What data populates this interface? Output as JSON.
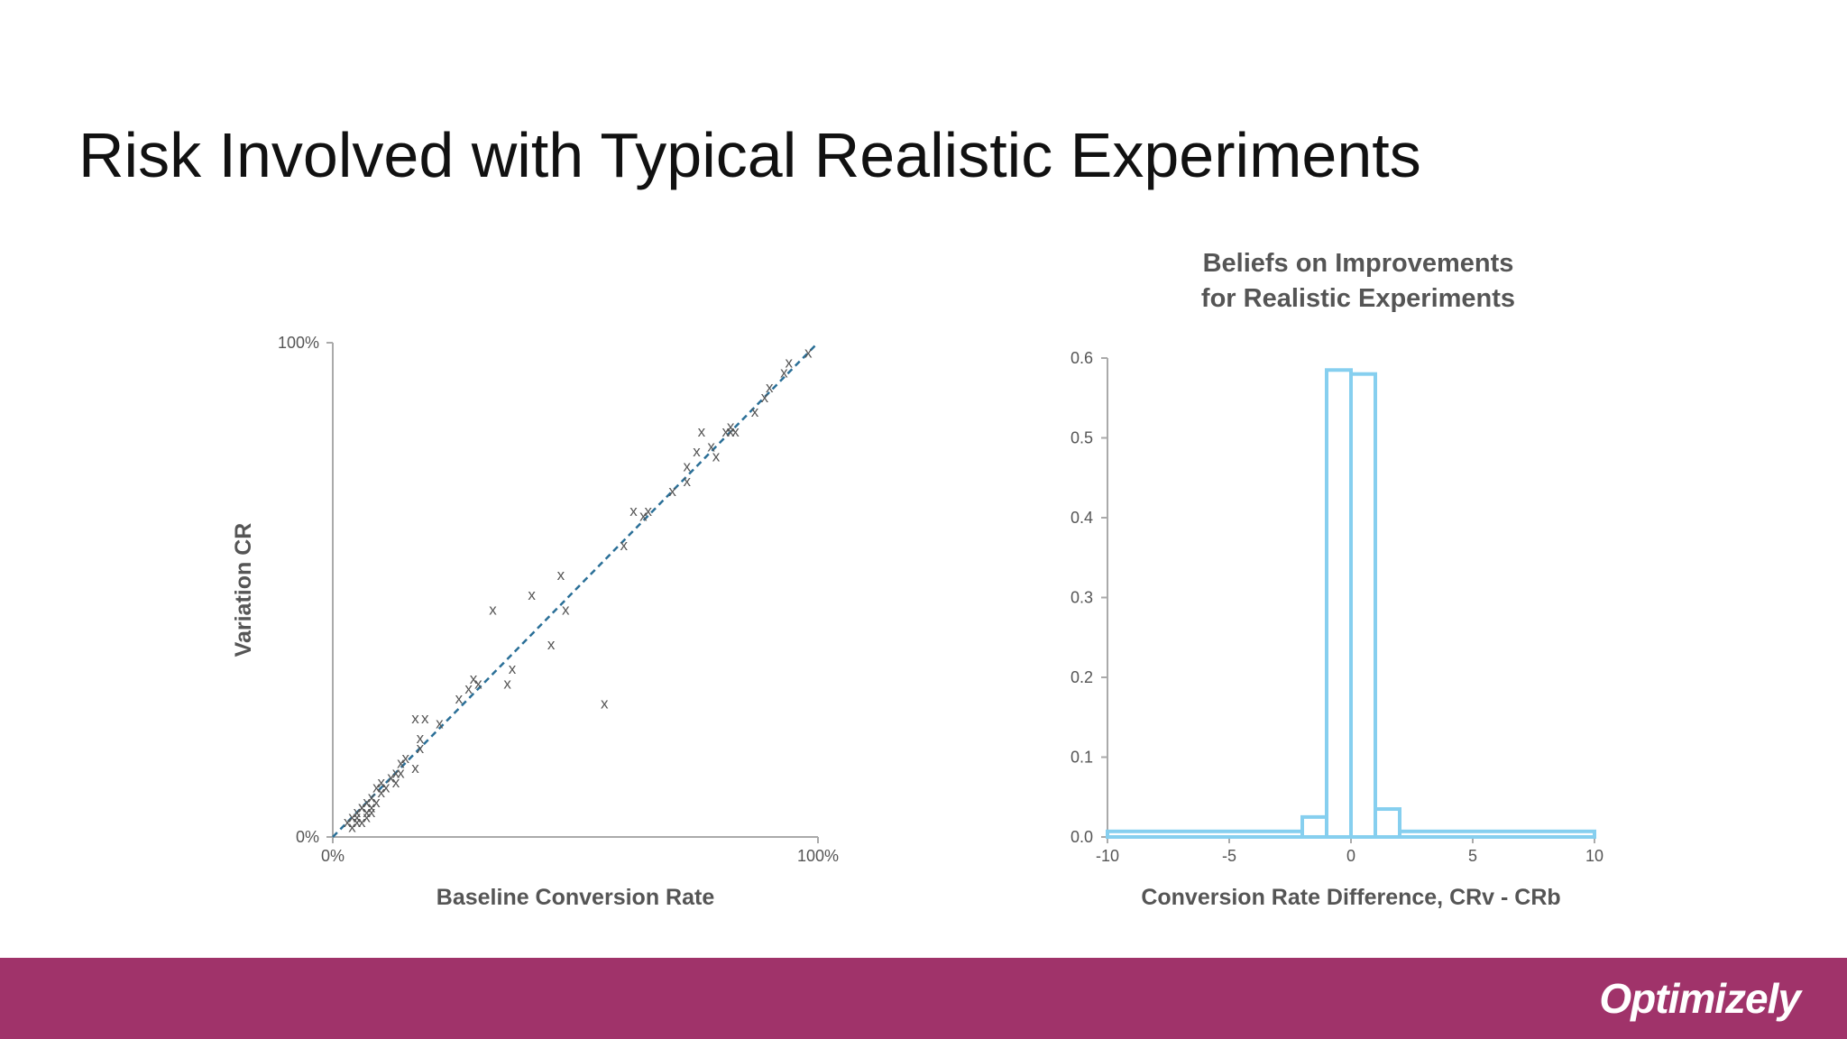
{
  "slide": {
    "title": "Risk Involved with Typical Realistic Experiments",
    "logo_text": "Optimizely",
    "footer_color": "#a0336a"
  },
  "chart_data": [
    {
      "type": "scatter",
      "title": "",
      "xlabel": "Baseline Conversion Rate",
      "ylabel": "Variation CR",
      "xlim": [
        0,
        100
      ],
      "ylim": [
        0,
        100
      ],
      "x_ticks": [
        "0%",
        "100%"
      ],
      "y_ticks": [
        "0%",
        "100%"
      ],
      "marker_symbol": "x",
      "trendline": {
        "style": "dashed",
        "color": "#2a6f97",
        "from": [
          0,
          0
        ],
        "to": [
          100,
          100
        ]
      },
      "points": [
        [
          3,
          3
        ],
        [
          4,
          4
        ],
        [
          4,
          2
        ],
        [
          5,
          3
        ],
        [
          5,
          5
        ],
        [
          6,
          6
        ],
        [
          5,
          4
        ],
        [
          6,
          3
        ],
        [
          7,
          7
        ],
        [
          7,
          5
        ],
        [
          8,
          6
        ],
        [
          8,
          8
        ],
        [
          9,
          7
        ],
        [
          9,
          10
        ],
        [
          10,
          9
        ],
        [
          10,
          11
        ],
        [
          11,
          10
        ],
        [
          7,
          4
        ],
        [
          8,
          5
        ],
        [
          6,
          6
        ],
        [
          12,
          12
        ],
        [
          13,
          13
        ],
        [
          14,
          15
        ],
        [
          13,
          11
        ],
        [
          14,
          13
        ],
        [
          15,
          16
        ],
        [
          17,
          14
        ],
        [
          18,
          18
        ],
        [
          18,
          20
        ],
        [
          19,
          24
        ],
        [
          22,
          23
        ],
        [
          17,
          24
        ],
        [
          26,
          28
        ],
        [
          28,
          30
        ],
        [
          29,
          32
        ],
        [
          30,
          31
        ],
        [
          36,
          31
        ],
        [
          37,
          34
        ],
        [
          33,
          46
        ],
        [
          41,
          49
        ],
        [
          47,
          53
        ],
        [
          48,
          46
        ],
        [
          45,
          39
        ],
        [
          56,
          27
        ],
        [
          60,
          59
        ],
        [
          62,
          66
        ],
        [
          64,
          65
        ],
        [
          65,
          66
        ],
        [
          70,
          70
        ],
        [
          73,
          75
        ],
        [
          73,
          72
        ],
        [
          75,
          78
        ],
        [
          76,
          82
        ],
        [
          78,
          79
        ],
        [
          79,
          77
        ],
        [
          81,
          82
        ],
        [
          82,
          83
        ],
        [
          82,
          82
        ],
        [
          83,
          82
        ],
        [
          87,
          86
        ],
        [
          89,
          89
        ],
        [
          90,
          91
        ],
        [
          93,
          94
        ],
        [
          94,
          96
        ],
        [
          98,
          98
        ]
      ]
    },
    {
      "type": "bar",
      "subtype": "histogram",
      "title_lines": [
        "Beliefs on Improvements",
        "for Realistic Experiments"
      ],
      "xlabel": "Conversion Rate Difference, CRv - CRb",
      "ylabel": "",
      "xlim": [
        -10,
        10
      ],
      "ylim": [
        0,
        0.6
      ],
      "x_ticks": [
        "-10",
        "-5",
        "0",
        "5",
        "10"
      ],
      "y_ticks": [
        "0.0",
        "0.1",
        "0.2",
        "0.3",
        "0.4",
        "0.5",
        "0.6"
      ],
      "bar_color": "#86cfef",
      "bins": [
        {
          "from": -10,
          "to": -2,
          "value": 0.007
        },
        {
          "from": -2,
          "to": -1,
          "value": 0.025
        },
        {
          "from": -1,
          "to": 0,
          "value": 0.585
        },
        {
          "from": 0,
          "to": 1,
          "value": 0.58
        },
        {
          "from": 1,
          "to": 2,
          "value": 0.035
        },
        {
          "from": 2,
          "to": 10,
          "value": 0.007
        }
      ]
    }
  ]
}
